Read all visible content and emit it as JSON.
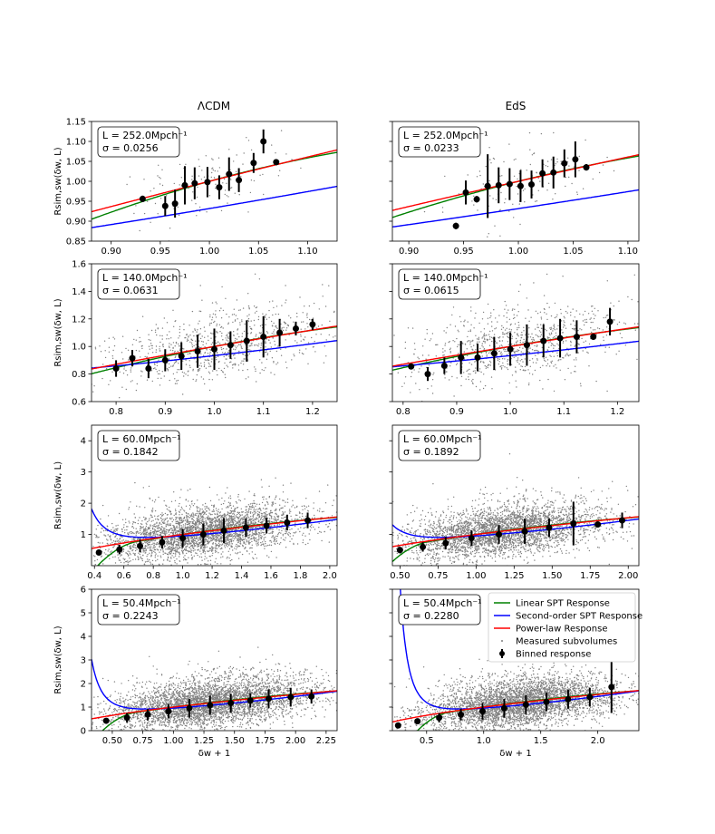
{
  "chart_data": {
    "type": "scatter",
    "column_titles": [
      "ΛCDM",
      "EdS"
    ],
    "xlabel": "δw + 1",
    "ylabel": "Rsim,sw(δw, L)",
    "colors": {
      "linear": "#008000",
      "second_order": "#0000ff",
      "power_law": "#ff0000",
      "subvolumes": "#808080",
      "binned": "#000000"
    },
    "legend": {
      "location": "upper right of bottom-right panel",
      "entries": [
        {
          "name": "Linear SPT Response",
          "color": "#008000",
          "kind": "line"
        },
        {
          "name": "Second-order SPT Response",
          "color": "#0000ff",
          "kind": "line"
        },
        {
          "name": "Power-law Response",
          "color": "#ff0000",
          "kind": "line"
        },
        {
          "name": "Measured subvolumes",
          "color": "#808080",
          "kind": "dot"
        },
        {
          "name": "Binned response",
          "color": "#000000",
          "kind": "errorbar"
        }
      ]
    },
    "panels": [
      {
        "id": "lcdm-252",
        "model": "ΛCDM",
        "row": 0,
        "col": 0,
        "L_text": "L = 252.0Mpch⁻¹",
        "sigma_text": "σ = 0.0256",
        "sigma": 0.0256,
        "xlim": [
          0.88,
          1.13
        ],
        "ylim": [
          0.85,
          1.15
        ],
        "xticks": [
          0.9,
          0.95,
          1.0,
          1.05,
          1.1
        ],
        "xticklabels": [
          "0.90",
          "0.95",
          "1.00",
          "1.05",
          "1.10"
        ],
        "yticks": [
          0.85,
          0.9,
          0.95,
          1.0,
          1.05,
          1.1,
          1.15
        ],
        "yticklabels": [
          "0.85",
          "0.90",
          "0.95",
          "1.00",
          "1.05",
          "1.10",
          "1.15"
        ],
        "show_ylabel": true,
        "show_xlabel": false,
        "curves": {
          "lin_a": 0.68,
          "sec_c": 0.96,
          "sec_b": 0.55,
          "pow_p": 0.6
        },
        "scatter": {
          "count": 130,
          "xmin": 0.93,
          "xmax": 1.07,
          "spread": 0.035,
          "seed": 11
        },
        "binned": [
          {
            "x": 0.932,
            "y": 0.956,
            "err": 0.008
          },
          {
            "x": 0.955,
            "y": 0.938,
            "err": 0.025
          },
          {
            "x": 0.965,
            "y": 0.944,
            "err": 0.035
          },
          {
            "x": 0.975,
            "y": 0.99,
            "err": 0.048
          },
          {
            "x": 0.985,
            "y": 0.995,
            "err": 0.04
          },
          {
            "x": 0.998,
            "y": 0.998,
            "err": 0.038
          },
          {
            "x": 1.01,
            "y": 0.985,
            "err": 0.03
          },
          {
            "x": 1.02,
            "y": 1.018,
            "err": 0.042
          },
          {
            "x": 1.03,
            "y": 1.003,
            "err": 0.03
          },
          {
            "x": 1.045,
            "y": 1.046,
            "err": 0.025
          },
          {
            "x": 1.055,
            "y": 1.1,
            "err": 0.03
          },
          {
            "x": 1.068,
            "y": 1.048,
            "err": 0.005
          }
        ]
      },
      {
        "id": "eds-252",
        "model": "EdS",
        "row": 0,
        "col": 1,
        "L_text": "L = 252.0Mpch⁻¹",
        "sigma_text": "σ = 0.0233",
        "sigma": 0.0233,
        "xlim": [
          0.885,
          1.11
        ],
        "ylim": [
          0.85,
          1.15
        ],
        "xticks": [
          0.9,
          0.95,
          1.0,
          1.05,
          1.1
        ],
        "xticklabels": [
          "0.90",
          "0.95",
          "1.00",
          "1.05",
          "1.10"
        ],
        "yticks": [
          0.85,
          0.9,
          0.95,
          1.0,
          1.05,
          1.1,
          1.15
        ],
        "yticklabels": [],
        "show_ylabel": false,
        "show_xlabel": false,
        "curves": {
          "lin_a": 0.68,
          "sec_c": 0.96,
          "sec_b": 0.55,
          "pow_p": 0.6
        },
        "scatter": {
          "count": 130,
          "xmin": 0.94,
          "xmax": 1.06,
          "spread": 0.035,
          "seed": 23
        },
        "binned": [
          {
            "x": 0.943,
            "y": 0.888,
            "err": 0.008
          },
          {
            "x": 0.952,
            "y": 0.972,
            "err": 0.03
          },
          {
            "x": 0.962,
            "y": 0.955,
            "err": 0.008
          },
          {
            "x": 0.972,
            "y": 0.988,
            "err": 0.08
          },
          {
            "x": 0.982,
            "y": 0.99,
            "err": 0.045
          },
          {
            "x": 0.992,
            "y": 0.993,
            "err": 0.04
          },
          {
            "x": 1.002,
            "y": 0.988,
            "err": 0.04
          },
          {
            "x": 1.012,
            "y": 0.992,
            "err": 0.035
          },
          {
            "x": 1.022,
            "y": 1.02,
            "err": 0.035
          },
          {
            "x": 1.032,
            "y": 1.022,
            "err": 0.04
          },
          {
            "x": 1.042,
            "y": 1.045,
            "err": 0.035
          },
          {
            "x": 1.052,
            "y": 1.055,
            "err": 0.045
          },
          {
            "x": 1.062,
            "y": 1.035,
            "err": 0.008
          }
        ]
      },
      {
        "id": "lcdm-140",
        "model": "ΛCDM",
        "row": 1,
        "col": 0,
        "L_text": "L = 140.0Mpch⁻¹",
        "sigma_text": "σ = 0.0631",
        "sigma": 0.0631,
        "xlim": [
          0.75,
          1.25
        ],
        "ylim": [
          0.6,
          1.6
        ],
        "xticks": [
          0.8,
          0.9,
          1.0,
          1.1,
          1.2
        ],
        "xticklabels": [
          "0.8",
          "0.9",
          "1.0",
          "1.1",
          "1.2"
        ],
        "yticks": [
          0.6,
          0.8,
          1.0,
          1.2,
          1.4,
          1.6
        ],
        "yticklabels": [
          "0.6",
          "0.8",
          "1.0",
          "1.2",
          "1.4",
          "1.6"
        ],
        "show_ylabel": true,
        "show_xlabel": false,
        "curves": {
          "lin_a": 0.68,
          "sec_c": 0.96,
          "sec_b": 0.55,
          "pow_p": 0.6
        },
        "scatter": {
          "count": 900,
          "xmin": 0.8,
          "xmax": 1.22,
          "spread": 0.1,
          "seed": 37
        },
        "binned": [
          {
            "x": 0.8,
            "y": 0.84,
            "err": 0.06
          },
          {
            "x": 0.833,
            "y": 0.915,
            "err": 0.06
          },
          {
            "x": 0.866,
            "y": 0.84,
            "err": 0.07
          },
          {
            "x": 0.9,
            "y": 0.9,
            "err": 0.08
          },
          {
            "x": 0.933,
            "y": 0.93,
            "err": 0.1
          },
          {
            "x": 0.966,
            "y": 0.965,
            "err": 0.12
          },
          {
            "x": 1.0,
            "y": 0.98,
            "err": 0.15
          },
          {
            "x": 1.033,
            "y": 1.01,
            "err": 0.1
          },
          {
            "x": 1.066,
            "y": 1.04,
            "err": 0.15
          },
          {
            "x": 1.1,
            "y": 1.07,
            "err": 0.15
          },
          {
            "x": 1.133,
            "y": 1.1,
            "err": 0.1
          },
          {
            "x": 1.166,
            "y": 1.13,
            "err": 0.05
          },
          {
            "x": 1.2,
            "y": 1.16,
            "err": 0.04
          }
        ]
      },
      {
        "id": "eds-140",
        "model": "EdS",
        "row": 1,
        "col": 1,
        "L_text": "L = 140.0Mpch⁻¹",
        "sigma_text": "σ = 0.0615",
        "sigma": 0.0615,
        "xlim": [
          0.78,
          1.24
        ],
        "ylim": [
          0.6,
          1.6
        ],
        "xticks": [
          0.8,
          0.9,
          1.0,
          1.1,
          1.2
        ],
        "xticklabels": [
          "0.8",
          "0.9",
          "1.0",
          "1.1",
          "1.2"
        ],
        "yticks": [
          0.6,
          0.8,
          1.0,
          1.2,
          1.4,
          1.6
        ],
        "yticklabels": [],
        "show_ylabel": false,
        "show_xlabel": false,
        "curves": {
          "lin_a": 0.68,
          "sec_c": 0.96,
          "sec_b": 0.55,
          "pow_p": 0.6
        },
        "scatter": {
          "count": 900,
          "xmin": 0.82,
          "xmax": 1.2,
          "spread": 0.1,
          "seed": 41
        },
        "binned": [
          {
            "x": 0.815,
            "y": 0.855,
            "err": 0.01
          },
          {
            "x": 0.846,
            "y": 0.8,
            "err": 0.05
          },
          {
            "x": 0.877,
            "y": 0.86,
            "err": 0.06
          },
          {
            "x": 0.908,
            "y": 0.92,
            "err": 0.12
          },
          {
            "x": 0.939,
            "y": 0.92,
            "err": 0.1
          },
          {
            "x": 0.97,
            "y": 0.95,
            "err": 0.12
          },
          {
            "x": 1.0,
            "y": 0.98,
            "err": 0.12
          },
          {
            "x": 1.031,
            "y": 1.01,
            "err": 0.15
          },
          {
            "x": 1.062,
            "y": 1.04,
            "err": 0.12
          },
          {
            "x": 1.093,
            "y": 1.06,
            "err": 0.14
          },
          {
            "x": 1.124,
            "y": 1.07,
            "err": 0.12
          },
          {
            "x": 1.155,
            "y": 1.07,
            "err": 0.02
          },
          {
            "x": 1.186,
            "y": 1.18,
            "err": 0.1
          }
        ]
      },
      {
        "id": "lcdm-60",
        "model": "ΛCDM",
        "row": 2,
        "col": 0,
        "L_text": "L = 60.0Mpch⁻¹",
        "sigma_text": "σ = 0.1842",
        "sigma": 0.1842,
        "xlim": [
          0.38,
          2.05
        ],
        "ylim": [
          0,
          4.5
        ],
        "xticks": [
          0.4,
          0.6,
          0.8,
          1.0,
          1.2,
          1.4,
          1.6,
          1.8,
          2.0
        ],
        "xticklabels": [
          "0.4",
          "0.6",
          "0.8",
          "1.0",
          "1.2",
          "1.4",
          "1.6",
          "1.8",
          "2.0"
        ],
        "yticks": [
          1,
          2,
          3,
          4
        ],
        "yticklabels": [
          "1",
          "2",
          "3",
          "4"
        ],
        "show_ylabel": true,
        "show_xlabel": false,
        "curves": {
          "lin_a": 0.68,
          "sec_c": 0.96,
          "sec_b": 0.55,
          "pow_p": 0.6
        },
        "scatter": {
          "count": 3600,
          "xmin": 0.55,
          "xmax": 1.75,
          "spread": 0.32,
          "seed": 53
        },
        "binned": [
          {
            "x": 0.43,
            "y": 0.42,
            "err": 0.03
          },
          {
            "x": 0.57,
            "y": 0.52,
            "err": 0.15
          },
          {
            "x": 0.71,
            "y": 0.63,
            "err": 0.2
          },
          {
            "x": 0.86,
            "y": 0.75,
            "err": 0.2
          },
          {
            "x": 1.0,
            "y": 0.88,
            "err": 0.3
          },
          {
            "x": 1.14,
            "y": 1.0,
            "err": 0.35
          },
          {
            "x": 1.28,
            "y": 1.12,
            "err": 0.4
          },
          {
            "x": 1.43,
            "y": 1.22,
            "err": 0.3
          },
          {
            "x": 1.57,
            "y": 1.28,
            "err": 0.25
          },
          {
            "x": 1.71,
            "y": 1.38,
            "err": 0.25
          },
          {
            "x": 1.85,
            "y": 1.45,
            "err": 0.25
          }
        ]
      },
      {
        "id": "eds-60",
        "model": "EdS",
        "row": 2,
        "col": 1,
        "L_text": "L = 60.0Mpch⁻¹",
        "sigma_text": "σ = 0.1892",
        "sigma": 0.1892,
        "xlim": [
          0.45,
          2.07
        ],
        "ylim": [
          0,
          4.5
        ],
        "xticks": [
          0.5,
          0.75,
          1.0,
          1.25,
          1.5,
          1.75,
          2.0
        ],
        "xticklabels": [
          "0.50",
          "0.75",
          "1.00",
          "1.25",
          "1.50",
          "1.75",
          "2.00"
        ],
        "yticks": [
          1,
          2,
          3,
          4
        ],
        "yticklabels": [],
        "show_ylabel": false,
        "show_xlabel": false,
        "curves": {
          "lin_a": 0.68,
          "sec_c": 0.96,
          "sec_b": 0.55,
          "pow_p": 0.6
        },
        "scatter": {
          "count": 3600,
          "xmin": 0.58,
          "xmax": 1.75,
          "spread": 0.32,
          "seed": 61
        },
        "binned": [
          {
            "x": 0.5,
            "y": 0.5,
            "err": 0.08
          },
          {
            "x": 0.65,
            "y": 0.6,
            "err": 0.15
          },
          {
            "x": 0.8,
            "y": 0.72,
            "err": 0.2
          },
          {
            "x": 0.97,
            "y": 0.88,
            "err": 0.25
          },
          {
            "x": 1.15,
            "y": 1.0,
            "err": 0.3
          },
          {
            "x": 1.32,
            "y": 1.1,
            "err": 0.4
          },
          {
            "x": 1.48,
            "y": 1.22,
            "err": 0.3
          },
          {
            "x": 1.64,
            "y": 1.35,
            "err": 0.7
          },
          {
            "x": 1.8,
            "y": 1.32,
            "err": 0.04
          },
          {
            "x": 1.96,
            "y": 1.45,
            "err": 0.25
          }
        ]
      },
      {
        "id": "lcdm-50",
        "model": "ΛCDM",
        "row": 3,
        "col": 0,
        "L_text": "L = 50.4Mpch⁻¹",
        "sigma_text": "σ = 0.2243",
        "sigma": 0.2243,
        "xlim": [
          0.33,
          2.34
        ],
        "ylim": [
          0,
          6
        ],
        "xticks": [
          0.5,
          0.75,
          1.0,
          1.25,
          1.5,
          1.75,
          2.0,
          2.25
        ],
        "xticklabels": [
          "0.50",
          "0.75",
          "1.00",
          "1.25",
          "1.50",
          "1.75",
          "2.00",
          "2.25"
        ],
        "yticks": [
          0,
          1,
          2,
          3,
          4,
          5,
          6
        ],
        "yticklabels": [
          "0",
          "1",
          "2",
          "3",
          "4",
          "5",
          "6"
        ],
        "show_ylabel": true,
        "show_xlabel": true,
        "curves": {
          "lin_a": 0.68,
          "sec_c": 0.96,
          "sec_b": 0.55,
          "pow_p": 0.6
        },
        "scatter": {
          "count": 4200,
          "xmin": 0.55,
          "xmax": 2.05,
          "spread": 0.4,
          "seed": 71
        },
        "binned": [
          {
            "x": 0.45,
            "y": 0.42,
            "err": 0.1
          },
          {
            "x": 0.62,
            "y": 0.55,
            "err": 0.2
          },
          {
            "x": 0.79,
            "y": 0.68,
            "err": 0.25
          },
          {
            "x": 0.96,
            "y": 0.82,
            "err": 0.3
          },
          {
            "x": 1.13,
            "y": 0.95,
            "err": 0.4
          },
          {
            "x": 1.3,
            "y": 1.08,
            "err": 0.4
          },
          {
            "x": 1.47,
            "y": 1.17,
            "err": 0.4
          },
          {
            "x": 1.63,
            "y": 1.28,
            "err": 0.3
          },
          {
            "x": 1.78,
            "y": 1.35,
            "err": 0.4
          },
          {
            "x": 1.96,
            "y": 1.42,
            "err": 0.4
          },
          {
            "x": 2.13,
            "y": 1.45,
            "err": 0.3
          }
        ]
      },
      {
        "id": "eds-50",
        "model": "EdS",
        "row": 3,
        "col": 1,
        "L_text": "L = 50.4Mpch⁻¹",
        "sigma_text": "σ = 0.2280",
        "sigma": 0.228,
        "xlim": [
          0.2,
          2.36
        ],
        "ylim": [
          0,
          6
        ],
        "xticks": [
          0.5,
          1.0,
          1.5,
          2.0
        ],
        "xticklabels": [
          "0.5",
          "1.0",
          "1.5",
          "2.0"
        ],
        "yticks": [
          0,
          1,
          2,
          3,
          4,
          5,
          6
        ],
        "yticklabels": [],
        "show_ylabel": false,
        "show_xlabel": true,
        "show_legend": true,
        "curves": {
          "lin_a": 0.68,
          "sec_c": 0.96,
          "sec_b": 0.55,
          "pow_p": 0.6
        },
        "scatter": {
          "count": 4200,
          "xmin": 0.55,
          "xmax": 2.05,
          "spread": 0.4,
          "seed": 83
        },
        "binned": [
          {
            "x": 0.25,
            "y": 0.22,
            "err": 0.04
          },
          {
            "x": 0.42,
            "y": 0.4,
            "err": 0.1
          },
          {
            "x": 0.61,
            "y": 0.55,
            "err": 0.2
          },
          {
            "x": 0.8,
            "y": 0.68,
            "err": 0.25
          },
          {
            "x": 0.99,
            "y": 0.82,
            "err": 0.35
          },
          {
            "x": 1.18,
            "y": 0.95,
            "err": 0.4
          },
          {
            "x": 1.37,
            "y": 1.1,
            "err": 0.4
          },
          {
            "x": 1.55,
            "y": 1.22,
            "err": 0.4
          },
          {
            "x": 1.74,
            "y": 1.33,
            "err": 0.4
          },
          {
            "x": 1.93,
            "y": 1.42,
            "err": 0.4
          },
          {
            "x": 2.12,
            "y": 1.85,
            "err": 1.1
          }
        ]
      }
    ]
  }
}
